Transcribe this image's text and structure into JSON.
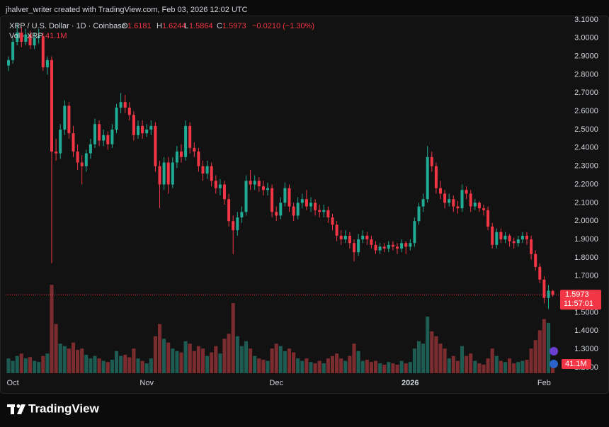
{
  "header": {
    "attribution": "jhalver_writer created with TradingView.com, Feb 03, 2026 12:02 UTC"
  },
  "footer": {
    "brand": "TradingView"
  },
  "chart_data": {
    "type": "candlestick",
    "symbol": "XRP / U.S. Dollar · 1D · Coinbase",
    "ohlc_labels": [
      "O",
      "H",
      "L",
      "C"
    ],
    "change": "−0.0210 (−1.30%)",
    "volume_title": "Vol · XRP",
    "volume_label": "41.1M",
    "countdown": "11:57:01",
    "up_color": "#22ab94",
    "down_color": "#f23645",
    "volume_up_color": "#1d5b53",
    "volume_down_color": "#7b2c2f",
    "categories": [
      null,
      "Oct",
      null,
      null,
      null,
      null,
      null,
      null,
      null,
      null,
      null,
      null,
      null,
      null,
      null,
      null,
      null,
      null,
      null,
      null,
      null,
      null,
      null,
      null,
      null,
      null,
      null,
      null,
      null,
      null,
      null,
      null,
      "Nov",
      null,
      null,
      null,
      null,
      null,
      null,
      null,
      null,
      null,
      null,
      null,
      null,
      null,
      null,
      null,
      null,
      null,
      null,
      null,
      null,
      null,
      null,
      null,
      null,
      null,
      null,
      null,
      null,
      null,
      "Dec",
      null,
      null,
      null,
      null,
      null,
      null,
      null,
      null,
      null,
      null,
      null,
      null,
      null,
      null,
      null,
      null,
      null,
      null,
      null,
      null,
      null,
      null,
      null,
      null,
      null,
      null,
      null,
      null,
      null,
      null,
      "2026",
      null,
      null,
      null,
      null,
      null,
      null,
      null,
      null,
      null,
      null,
      null,
      null,
      null,
      null,
      null,
      null,
      null,
      null,
      null,
      null,
      null,
      null,
      null,
      null,
      null,
      null,
      null,
      null,
      null,
      null,
      "Feb",
      null,
      null
    ],
    "open": [
      2.85,
      2.88,
      2.98,
      3.03,
      2.98,
      3.02,
      2.96,
      3.0,
      3.01,
      2.84,
      2.88,
      2.38,
      2.37,
      2.5,
      2.63,
      2.48,
      2.38,
      2.32,
      2.3,
      2.37,
      2.42,
      2.53,
      2.44,
      2.47,
      2.42,
      2.5,
      2.62,
      2.65,
      2.62,
      2.58,
      2.47,
      2.52,
      2.48,
      2.5,
      2.52,
      2.3,
      2.2,
      2.32,
      2.2,
      2.32,
      2.38,
      2.35,
      2.52,
      2.4,
      2.38,
      2.3,
      2.26,
      2.3,
      2.22,
      2.18,
      2.2,
      2.12,
      2.0,
      1.95,
      2.02,
      2.05,
      2.22,
      2.2,
      2.22,
      2.19,
      2.17,
      2.18,
      2.05,
      2.03,
      2.1,
      2.18,
      2.08,
      2.03,
      2.1,
      2.12,
      2.08,
      2.1,
      2.06,
      2.05,
      2.06,
      2.02,
      1.98,
      1.92,
      1.9,
      1.92,
      1.88,
      1.83,
      1.9,
      1.92,
      1.9,
      1.87,
      1.84,
      1.86,
      1.85,
      1.87,
      1.86,
      1.85,
      1.88,
      1.86,
      1.88,
      2.0,
      2.08,
      2.12,
      2.35,
      2.3,
      2.18,
      2.15,
      2.1,
      2.12,
      2.08,
      2.07,
      2.17,
      2.15,
      2.08,
      2.1,
      2.07,
      2.06,
      1.97,
      1.87,
      1.94,
      1.9,
      1.92,
      1.89,
      1.88,
      1.9,
      1.92,
      1.9,
      1.82,
      1.75,
      1.68,
      1.58,
      1.6181
    ],
    "high": [
      2.9,
      3.0,
      3.08,
      3.06,
      3.05,
      3.04,
      3.03,
      3.05,
      3.03,
      2.9,
      2.9,
      2.45,
      2.53,
      2.66,
      2.65,
      2.52,
      2.42,
      2.36,
      2.39,
      2.45,
      2.56,
      2.55,
      2.5,
      2.49,
      2.53,
      2.64,
      2.7,
      2.69,
      2.65,
      2.6,
      2.55,
      2.55,
      2.53,
      2.55,
      2.54,
      2.33,
      2.35,
      2.35,
      2.35,
      2.41,
      2.42,
      2.55,
      2.54,
      2.43,
      2.4,
      2.33,
      2.33,
      2.32,
      2.25,
      2.23,
      2.22,
      2.15,
      2.03,
      2.05,
      2.08,
      2.25,
      2.28,
      2.25,
      2.24,
      2.22,
      2.21,
      2.2,
      2.08,
      2.13,
      2.21,
      2.2,
      2.1,
      2.13,
      2.15,
      2.17,
      2.13,
      2.12,
      2.09,
      2.09,
      2.08,
      2.04,
      2.0,
      1.95,
      1.95,
      1.94,
      1.9,
      1.93,
      1.95,
      1.94,
      1.92,
      1.89,
      1.88,
      1.88,
      1.89,
      1.89,
      1.88,
      1.9,
      1.89,
      1.9,
      2.02,
      2.1,
      2.15,
      2.41,
      2.38,
      2.32,
      2.22,
      2.17,
      2.15,
      2.14,
      2.11,
      2.2,
      2.19,
      2.17,
      2.12,
      2.11,
      2.09,
      2.08,
      1.99,
      1.96,
      1.96,
      1.94,
      1.93,
      1.91,
      1.92,
      1.94,
      1.94,
      1.92,
      1.84,
      1.77,
      1.7,
      1.65,
      1.6244
    ],
    "low": [
      2.82,
      2.86,
      2.96,
      2.95,
      2.96,
      2.94,
      2.94,
      2.97,
      2.82,
      2.8,
      1.77,
      2.33,
      2.34,
      2.47,
      2.45,
      2.35,
      2.28,
      2.2,
      2.27,
      2.34,
      2.4,
      2.41,
      2.41,
      2.39,
      2.4,
      2.48,
      2.59,
      2.59,
      2.55,
      2.44,
      2.45,
      2.45,
      2.46,
      2.47,
      2.27,
      2.07,
      2.17,
      2.15,
      2.18,
      2.29,
      2.32,
      2.33,
      2.37,
      2.35,
      2.27,
      2.22,
      2.23,
      2.19,
      2.15,
      2.14,
      2.09,
      1.97,
      1.82,
      1.92,
      1.99,
      2.03,
      2.17,
      2.17,
      2.16,
      2.14,
      2.14,
      2.02,
      2.0,
      2.01,
      2.08,
      2.05,
      2.0,
      2.01,
      2.07,
      2.06,
      2.05,
      2.03,
      2.02,
      2.02,
      1.99,
      1.95,
      1.89,
      1.87,
      1.88,
      1.85,
      1.78,
      1.81,
      1.88,
      1.87,
      1.85,
      1.82,
      1.82,
      1.83,
      1.83,
      1.84,
      1.82,
      1.83,
      1.82,
      1.84,
      1.86,
      1.98,
      2.05,
      2.1,
      2.27,
      2.15,
      2.12,
      2.07,
      2.08,
      2.05,
      2.04,
      2.05,
      2.12,
      2.05,
      2.06,
      2.05,
      2.03,
      1.95,
      1.85,
      1.85,
      1.88,
      1.88,
      1.86,
      1.85,
      1.86,
      1.88,
      1.87,
      1.79,
      1.73,
      1.66,
      1.55,
      1.52,
      1.5864
    ],
    "close": [
      2.88,
      2.98,
      3.03,
      2.98,
      3.02,
      2.96,
      3.0,
      3.01,
      2.84,
      2.88,
      2.38,
      2.37,
      2.5,
      2.63,
      2.48,
      2.38,
      2.32,
      2.3,
      2.37,
      2.42,
      2.53,
      2.44,
      2.47,
      2.42,
      2.5,
      2.62,
      2.65,
      2.62,
      2.58,
      2.47,
      2.52,
      2.48,
      2.5,
      2.52,
      2.3,
      2.2,
      2.32,
      2.2,
      2.32,
      2.38,
      2.35,
      2.52,
      2.4,
      2.38,
      2.3,
      2.26,
      2.3,
      2.22,
      2.18,
      2.2,
      2.12,
      2.0,
      1.95,
      2.02,
      2.05,
      2.22,
      2.2,
      2.22,
      2.19,
      2.17,
      2.18,
      2.05,
      2.03,
      2.1,
      2.18,
      2.08,
      2.03,
      2.1,
      2.12,
      2.08,
      2.1,
      2.06,
      2.05,
      2.06,
      2.02,
      1.98,
      1.92,
      1.9,
      1.92,
      1.88,
      1.83,
      1.9,
      1.92,
      1.9,
      1.87,
      1.84,
      1.86,
      1.85,
      1.87,
      1.86,
      1.85,
      1.88,
      1.86,
      1.88,
      2.0,
      2.08,
      2.12,
      2.35,
      2.3,
      2.18,
      2.15,
      2.1,
      2.12,
      2.08,
      2.07,
      2.17,
      2.15,
      2.08,
      2.1,
      2.07,
      2.06,
      1.97,
      1.87,
      1.94,
      1.9,
      1.92,
      1.89,
      1.88,
      1.9,
      1.92,
      1.9,
      1.82,
      1.75,
      1.68,
      1.58,
      1.62,
      1.5973
    ],
    "volume": [
      66,
      55,
      77,
      88,
      66,
      72,
      55,
      50,
      77,
      88,
      395,
      220,
      132,
      121,
      110,
      137,
      104,
      110,
      82,
      66,
      77,
      66,
      55,
      50,
      60,
      99,
      77,
      82,
      71,
      110,
      66,
      55,
      44,
      66,
      165,
      220,
      154,
      137,
      110,
      99,
      93,
      143,
      132,
      99,
      121,
      110,
      77,
      93,
      121,
      88,
      154,
      176,
      313,
      165,
      121,
      143,
      110,
      77,
      66,
      60,
      55,
      110,
      132,
      121,
      99,
      110,
      93,
      66,
      55,
      66,
      50,
      44,
      55,
      44,
      66,
      77,
      88,
      66,
      55,
      77,
      132,
      99,
      55,
      60,
      50,
      55,
      44,
      38,
      50,
      44,
      38,
      55,
      44,
      50,
      110,
      143,
      132,
      253,
      187,
      165,
      132,
      110,
      66,
      77,
      55,
      121,
      77,
      88,
      55,
      44,
      38,
      66,
      110,
      77,
      55,
      50,
      66,
      44,
      50,
      55,
      60,
      110,
      148,
      192,
      242,
      225,
      41.1
    ],
    "ylim": [
      1.165,
      3.123
    ],
    "yticks": [
      {
        "value": 3.1,
        "label": "3.1000"
      },
      {
        "value": 3.0,
        "label": "3.0000"
      },
      {
        "value": 2.9,
        "label": "2.9000"
      },
      {
        "value": 2.8,
        "label": "2.8000"
      },
      {
        "value": 2.7,
        "label": "2.7000"
      },
      {
        "value": 2.6,
        "label": "2.6000"
      },
      {
        "value": 2.5,
        "label": "2.5000"
      },
      {
        "value": 2.4,
        "label": "2.4000"
      },
      {
        "value": 2.3,
        "label": "2.3000"
      },
      {
        "value": 2.2,
        "label": "2.2000"
      },
      {
        "value": 2.1,
        "label": "2.1000"
      },
      {
        "value": 2.0,
        "label": "2.0000"
      },
      {
        "value": 1.9,
        "label": "1.9000"
      },
      {
        "value": 1.8,
        "label": "1.8000"
      },
      {
        "value": 1.7,
        "label": "1.7000"
      },
      {
        "value": 1.5,
        "label": "1.5000"
      },
      {
        "value": 1.4,
        "label": "1.4000"
      },
      {
        "value": 1.3,
        "label": "1.3000"
      },
      {
        "value": 1.2,
        "label": "1.2000"
      }
    ]
  }
}
